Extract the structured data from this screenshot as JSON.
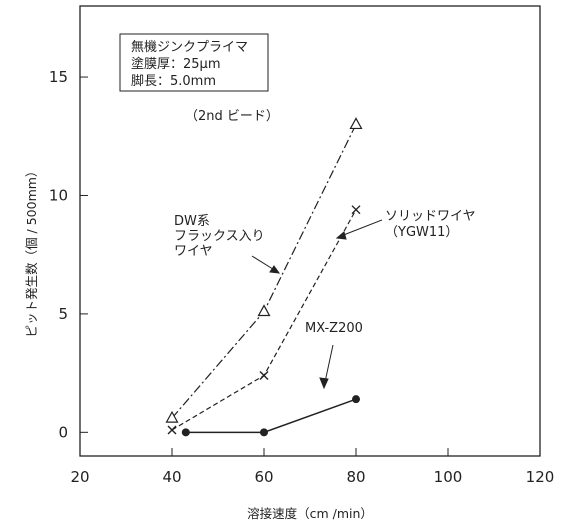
{
  "chart_data": {
    "type": "line",
    "xlabel": "溶接速度（cm /min）",
    "ylabel": "ピット発生数（個 / 500mm）",
    "xlim": [
      20,
      120
    ],
    "ylim": [
      -1,
      18
    ],
    "x_ticks": [
      "20",
      "40",
      "60",
      "80",
      "100",
      "120"
    ],
    "y_ticks": [
      "0",
      "5",
      "10",
      "15"
    ],
    "x_tick_values": [
      20,
      40,
      60,
      80,
      100,
      120
    ],
    "y_tick_values": [
      0,
      5,
      10,
      15
    ],
    "grid": false,
    "conditions": {
      "line1": "無機ジンクプライマ",
      "line2": "塗膜厚：25μm",
      "line3": "脚長：5.0mm"
    },
    "note": "（2nd ビード）",
    "series": [
      {
        "name": "DW系 フラックス入り ワイヤ",
        "label_lines": [
          "DW系",
          "フラックス入り",
          "ワイヤ"
        ],
        "marker": "triangle",
        "line_style": "dashdot",
        "x": [
          40,
          60,
          80
        ],
        "y": [
          0.6,
          5.1,
          13.0
        ]
      },
      {
        "name": "ソリッドワイヤ （YGW11）",
        "label_lines": [
          "ソリッドワイヤ",
          "（YGW11）"
        ],
        "marker": "x",
        "line_style": "dashed",
        "x": [
          40,
          60,
          80
        ],
        "y": [
          0.1,
          2.4,
          9.4
        ]
      },
      {
        "name": "MX-Z200",
        "label_lines": [
          "MX-Z200"
        ],
        "marker": "dot",
        "line_style": "solid",
        "x": [
          43,
          60,
          80
        ],
        "y": [
          0.0,
          0.0,
          1.4
        ]
      }
    ]
  }
}
